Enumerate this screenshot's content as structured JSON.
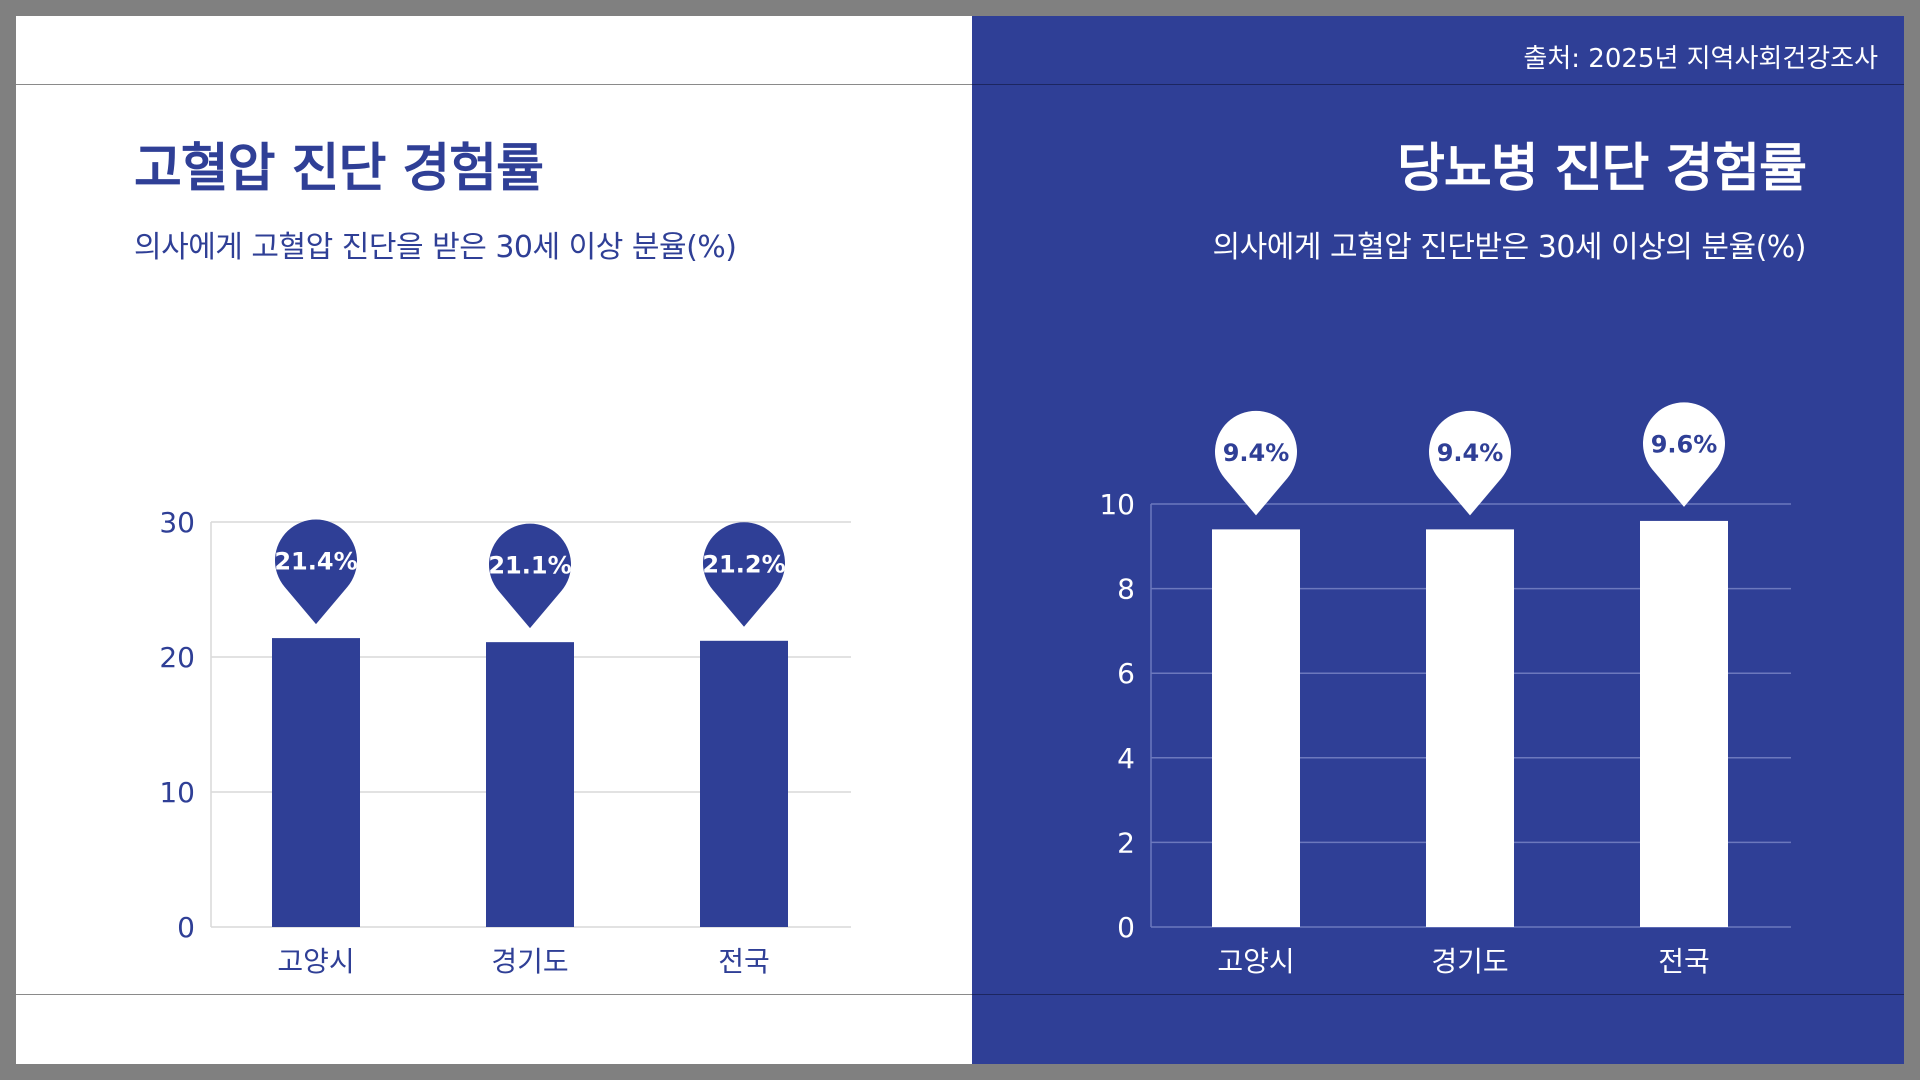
{
  "source": "출처: 2025년 지역사회건강조사",
  "charts": {
    "hypertension": {
      "title": "고혈압 진단 경험률",
      "subtitle": "의사에게 고혈압 진단을 받은 30세 이상 분율(%)"
    },
    "diabetes": {
      "title": "당뇨병 진단 경험률",
      "subtitle": "의사에게 고혈압 진단받은 30세 이상의 분율(%)"
    }
  },
  "colors": {
    "brand_blue": "#2f3f96",
    "white": "#ffffff",
    "left_grid": "#d9d9d9",
    "right_grid": "#6c78bd"
  },
  "chart_data": [
    {
      "type": "bar",
      "categories": [
        "고양시",
        "경기도",
        "전국"
      ],
      "values": [
        21.4,
        21.1,
        21.2
      ],
      "value_labels": [
        "21.4%",
        "21.1%",
        "21.2%"
      ],
      "ylim": [
        0,
        30
      ],
      "yticks": [
        0,
        10,
        20,
        30
      ],
      "title": "고혈압 진단 경험률",
      "subtitle": "의사에게 고혈압 진단을 받은 30세 이상 분율(%)",
      "grid": true,
      "legend": "none"
    },
    {
      "type": "bar",
      "categories": [
        "고양시",
        "경기도",
        "전국"
      ],
      "values": [
        9.4,
        9.4,
        9.6
      ],
      "value_labels": [
        "9.4%",
        "9.4%",
        "9.6%"
      ],
      "ylim": [
        0,
        10
      ],
      "yticks": [
        0,
        2,
        4,
        6,
        8,
        10
      ],
      "title": "당뇨병 진단 경험률",
      "subtitle": "의사에게 고혈압 진단받은 30세 이상의 분율(%)",
      "grid": true,
      "legend": "none"
    }
  ]
}
